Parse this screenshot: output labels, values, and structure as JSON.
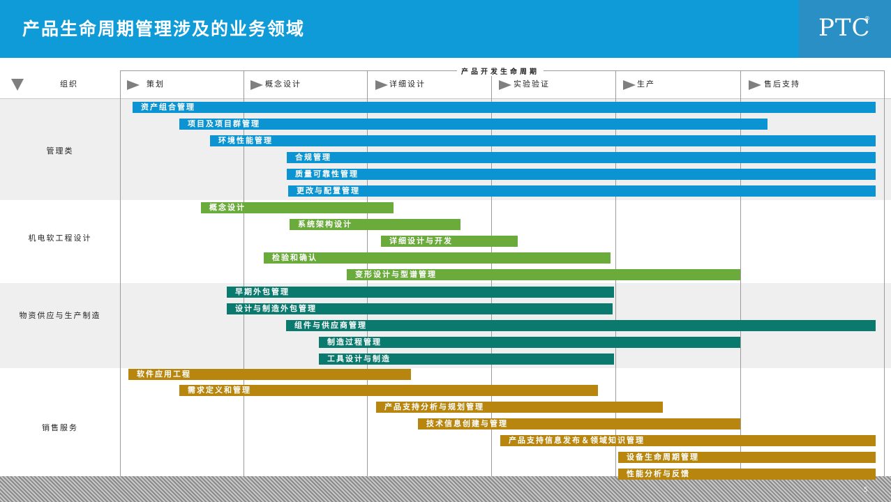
{
  "title": "产品生命周期管理涉及的业务领域",
  "logo": "PTC",
  "logo_mark": "®",
  "lifecycle_label": "产品开发生命周期",
  "org_label": "组织",
  "phases": [
    "策划",
    "概念设计",
    "详细设计",
    "实验验证",
    "生产",
    "售后支持"
  ],
  "groups": [
    {
      "label": "管理类"
    },
    {
      "label": "机电软工程设计"
    },
    {
      "label": "物资供应与生产制造"
    },
    {
      "label": "销售服务"
    }
  ],
  "colors": {
    "header": "#0f9bd7",
    "management": "#0b93d2",
    "engineering": "#6aab3c",
    "supply": "#0a7a6e",
    "service": "#b8860f"
  },
  "bars": [
    {
      "label": "资产组合管理",
      "group": "management"
    },
    {
      "label": "项目及项目群管理",
      "group": "management"
    },
    {
      "label": "环境性能管理",
      "group": "management"
    },
    {
      "label": "合规管理",
      "group": "management"
    },
    {
      "label": "质量可靠性管理",
      "group": "management"
    },
    {
      "label": "更改与配置管理",
      "group": "management"
    },
    {
      "label": "概念设计",
      "group": "engineering"
    },
    {
      "label": "系统架构设计",
      "group": "engineering"
    },
    {
      "label": "详细设计与开发",
      "group": "engineering"
    },
    {
      "label": "检验和确认",
      "group": "engineering"
    },
    {
      "label": "变形设计与型谱管理",
      "group": "engineering"
    },
    {
      "label": "早期外包管理",
      "group": "supply"
    },
    {
      "label": "设计与制造外包管理",
      "group": "supply"
    },
    {
      "label": "组件与供应商管理",
      "group": "supply"
    },
    {
      "label": "制造过程管理",
      "group": "supply"
    },
    {
      "label": "工具设计与制造",
      "group": "supply"
    },
    {
      "label": "软件应用工程",
      "group": "service"
    },
    {
      "label": "需求定义和管理",
      "group": "service"
    },
    {
      "label": "产品支持分析与规划管理",
      "group": "service"
    },
    {
      "label": "技术信息创建与管理",
      "group": "service"
    },
    {
      "label": "产品支持信息发布＆领域知识管理",
      "group": "service"
    },
    {
      "label": "设备生命周期管理",
      "group": "service"
    },
    {
      "label": "性能分析与反馈",
      "group": "service"
    }
  ],
  "page_number": "5"
}
